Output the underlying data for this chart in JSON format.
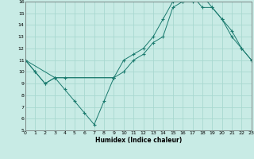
{
  "xlabel": "Humidex (Indice chaleur)",
  "xlim": [
    0,
    23
  ],
  "ylim": [
    5,
    16
  ],
  "yticks": [
    5,
    6,
    7,
    8,
    9,
    10,
    11,
    12,
    13,
    14,
    15,
    16
  ],
  "xticks": [
    0,
    1,
    2,
    3,
    4,
    5,
    6,
    7,
    8,
    9,
    10,
    11,
    12,
    13,
    14,
    15,
    16,
    17,
    18,
    19,
    20,
    21,
    22,
    23
  ],
  "bg_color": "#c8ebe5",
  "line_color": "#1a7a6e",
  "grid_color": "#a8d8d0",
  "series": [
    {
      "x": [
        0,
        1,
        2,
        3,
        4,
        5,
        6,
        7,
        8,
        9
      ],
      "y": [
        11,
        10,
        9,
        9.5,
        8.5,
        7.5,
        6.5,
        5.5,
        7.5,
        9.5
      ]
    },
    {
      "x": [
        0,
        1,
        2,
        3,
        4,
        9,
        10,
        11,
        12,
        13,
        14,
        15,
        16,
        17,
        18,
        19,
        20,
        21,
        22,
        23
      ],
      "y": [
        11,
        10,
        9,
        9.5,
        9.5,
        9.5,
        11,
        11.5,
        12,
        13,
        14.5,
        16,
        16,
        16.5,
        15.5,
        15.5,
        14.5,
        13,
        12,
        11
      ]
    },
    {
      "x": [
        0,
        3,
        9,
        10,
        11,
        12,
        13,
        14,
        15,
        16,
        17,
        18,
        19,
        20,
        21,
        22,
        23
      ],
      "y": [
        11,
        9.5,
        9.5,
        10,
        11,
        11.5,
        12.5,
        13,
        15.5,
        16,
        16,
        16.5,
        15.5,
        14.5,
        13.5,
        12,
        11
      ]
    }
  ]
}
